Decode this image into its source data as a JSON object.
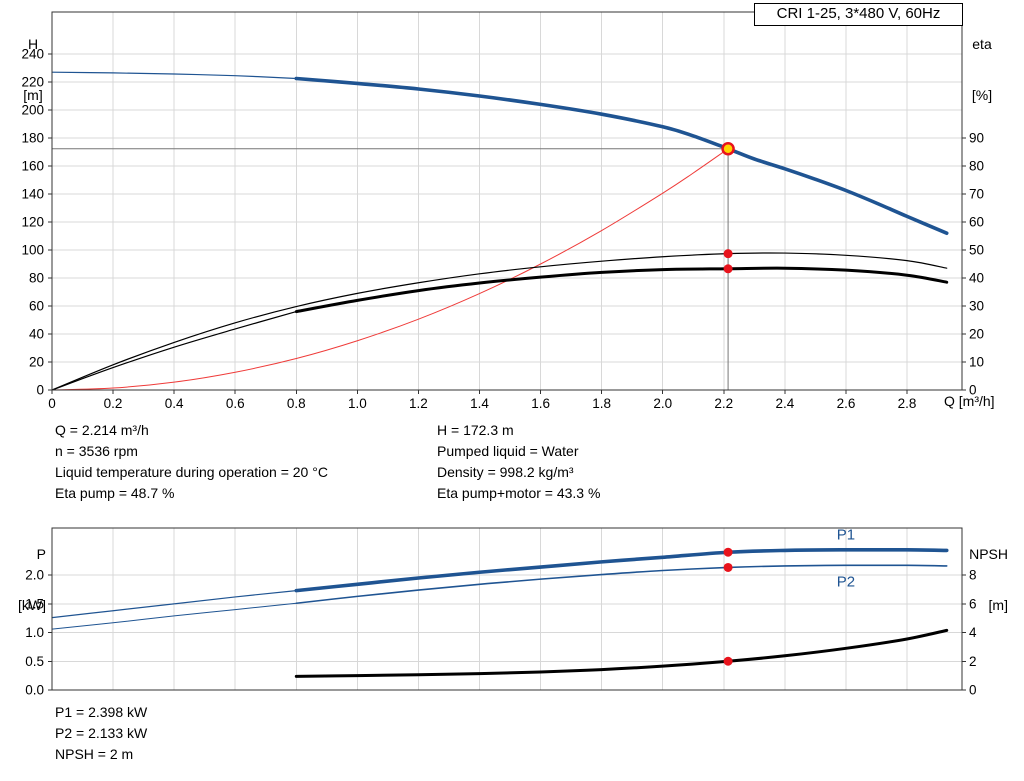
{
  "title_box": {
    "text": "CRI 1-25, 3*480 V, 60Hz"
  },
  "colors": {
    "curve_blue": "#1f5492",
    "curve_black": "#000000",
    "curve_red": "#ef3b39",
    "marker_red": "#e8131c",
    "marker_yellow": "#ffd400",
    "grid": "#d8d8d8",
    "axis": "#333333",
    "crosshair": "#777777"
  },
  "info_blocks": {
    "left": [
      "Q = 2.214 m³/h",
      "n = 3536 rpm",
      "Liquid temperature during operation = 20 °C",
      "Eta pump = 48.7 %"
    ],
    "right": [
      "H = 172.3 m",
      "Pumped liquid = Water",
      "Density = 998.2 kg/m³",
      "Eta pump+motor = 43.3 %"
    ],
    "bottom": [
      "P1 = 2.398 kW",
      "P2 = 2.133 kW",
      "NPSH = 2 m"
    ]
  },
  "chart_data": [
    {
      "type": "line",
      "title": "CRI 1-25, 3*480 V, 60Hz",
      "x_axis": {
        "label": "Q [m³/h]",
        "min": 0,
        "max": 2.98,
        "tick_values": [
          0,
          0.2,
          0.4,
          0.6,
          0.8,
          1.0,
          1.2,
          1.4,
          1.6,
          1.8,
          2.0,
          2.2,
          2.4,
          2.6,
          2.8
        ],
        "tick_labels": [
          "0",
          "0.2",
          "0.4",
          "0.6",
          "0.8",
          "1.0",
          "1.2",
          "1.4",
          "1.6",
          "1.8",
          "2.0",
          "2.2",
          "2.4",
          "2.6",
          "2.8"
        ],
        "show_labels": true
      },
      "y_left": {
        "name": "H",
        "unit": "[m]",
        "min": 0,
        "max": 270,
        "tick_values": [
          0,
          20,
          40,
          60,
          80,
          100,
          120,
          140,
          160,
          180,
          200,
          220,
          240
        ],
        "tick_labels": [
          "0",
          "20",
          "40",
          "60",
          "80",
          "100",
          "120",
          "140",
          "160",
          "180",
          "200",
          "220",
          "240"
        ]
      },
      "y_right": {
        "name": "eta",
        "unit": "[%]",
        "min": 0,
        "max": 135,
        "tick_values": [
          0,
          10,
          20,
          30,
          40,
          50,
          60,
          70,
          80,
          90
        ],
        "tick_labels": [
          "0",
          "10",
          "20",
          "30",
          "40",
          "50",
          "60",
          "70",
          "80",
          "90"
        ]
      },
      "crosshair": {
        "q": 2.214,
        "h": 172.3
      },
      "series": [
        {
          "name": "pump-head-curve-extension",
          "axis": "left",
          "color": "#1f5492",
          "width": 1.2,
          "points": [
            [
              0,
              227
            ],
            [
              0.2,
              226.5
            ],
            [
              0.4,
              225.7
            ],
            [
              0.6,
              224.5
            ],
            [
              0.8,
              222.5
            ]
          ]
        },
        {
          "name": "pump-head-curve",
          "axis": "left",
          "color": "#1f5492",
          "width": 3.6,
          "points": [
            [
              0.8,
              222.5
            ],
            [
              1.0,
              219
            ],
            [
              1.2,
              215
            ],
            [
              1.4,
              210
            ],
            [
              1.6,
              204
            ],
            [
              1.8,
              197
            ],
            [
              2.0,
              188
            ],
            [
              2.1,
              181.5
            ],
            [
              2.214,
              172.3
            ],
            [
              2.3,
              165
            ],
            [
              2.4,
              158
            ],
            [
              2.5,
              150.5
            ],
            [
              2.6,
              142.5
            ],
            [
              2.7,
              133.5
            ],
            [
              2.8,
              124
            ],
            [
              2.93,
              112
            ]
          ]
        },
        {
          "name": "system-curve",
          "axis": "left",
          "color": "#ef3b39",
          "width": 1,
          "points": [
            [
              0,
              0
            ],
            [
              0.2,
              1.4
            ],
            [
              0.4,
              5.6
            ],
            [
              0.6,
              12.7
            ],
            [
              0.8,
              22.5
            ],
            [
              1.0,
              35.2
            ],
            [
              1.2,
              50.6
            ],
            [
              1.4,
              68.9
            ],
            [
              1.6,
              90
            ],
            [
              1.8,
              113.9
            ],
            [
              2.0,
              140.6
            ],
            [
              2.1,
              155
            ],
            [
              2.214,
              172.3
            ]
          ]
        },
        {
          "name": "eta-pump-curve",
          "axis": "right",
          "color": "#000000",
          "width": 1.2,
          "points": [
            [
              0,
              0
            ],
            [
              0.2,
              9
            ],
            [
              0.4,
              17
            ],
            [
              0.6,
              24
            ],
            [
              0.8,
              29.8
            ],
            [
              1.0,
              34.5
            ],
            [
              1.2,
              38.3
            ],
            [
              1.4,
              41.5
            ],
            [
              1.6,
              44
            ],
            [
              1.8,
              46
            ],
            [
              2.0,
              47.6
            ],
            [
              2.214,
              48.7
            ],
            [
              2.4,
              48.9
            ],
            [
              2.6,
              48.1
            ],
            [
              2.8,
              46.2
            ],
            [
              2.93,
              43.5
            ]
          ]
        },
        {
          "name": "eta-pump-motor-curve-extension",
          "axis": "right",
          "color": "#000000",
          "width": 1.2,
          "points": [
            [
              0,
              0
            ],
            [
              0.2,
              8
            ],
            [
              0.4,
              15.3
            ],
            [
              0.6,
              21.8
            ],
            [
              0.8,
              28
            ]
          ]
        },
        {
          "name": "eta-pump-motor-curve",
          "axis": "right",
          "color": "#000000",
          "width": 3,
          "points": [
            [
              0.8,
              28
            ],
            [
              1.0,
              32
            ],
            [
              1.2,
              35.5
            ],
            [
              1.4,
              38.2
            ],
            [
              1.6,
              40.3
            ],
            [
              1.8,
              42
            ],
            [
              2.0,
              43
            ],
            [
              2.214,
              43.3
            ],
            [
              2.4,
              43.5
            ],
            [
              2.6,
              42.8
            ],
            [
              2.8,
              41
            ],
            [
              2.93,
              38.5
            ]
          ]
        }
      ],
      "markers": [
        {
          "name": "duty-point",
          "q": 2.214,
          "value": 172.3,
          "axis": "left",
          "r": 5.5,
          "fill": "#ffd400",
          "stroke": "#e8131c",
          "stroke_width": 2.5
        },
        {
          "name": "eta-pump-point",
          "q": 2.214,
          "value": 48.7,
          "axis": "right",
          "r": 4.5,
          "fill": "#e8131c"
        },
        {
          "name": "eta-pump-motor-point",
          "q": 2.214,
          "value": 43.3,
          "axis": "right",
          "r": 4.5,
          "fill": "#e8131c"
        }
      ],
      "annotations": []
    },
    {
      "type": "line",
      "x_axis": {
        "label": "",
        "min": 0,
        "max": 2.98,
        "tick_values": [
          0,
          0.2,
          0.4,
          0.6,
          0.8,
          1.0,
          1.2,
          1.4,
          1.6,
          1.8,
          2.0,
          2.2,
          2.4,
          2.6,
          2.8
        ],
        "tick_labels": [
          "0",
          "0.2",
          "0.4",
          "0.6",
          "0.8",
          "1.0",
          "1.2",
          "1.4",
          "1.6",
          "1.8",
          "2.0",
          "2.2",
          "2.4",
          "2.6",
          "2.8"
        ],
        "show_labels": false
      },
      "y_left": {
        "name": "P",
        "unit": "[kW]",
        "min": 0,
        "max": 2.82,
        "tick_values": [
          0,
          0.5,
          1.0,
          1.5,
          2.0
        ],
        "tick_labels": [
          "0.0",
          "0.5",
          "1.0",
          "1.5",
          "2.0"
        ]
      },
      "y_right": {
        "name": "NPSH",
        "unit": "[m]",
        "min": 0,
        "max": 11.27,
        "tick_values": [
          0,
          2,
          4,
          6,
          8
        ],
        "tick_labels": [
          "0",
          "2",
          "4",
          "6",
          "8"
        ]
      },
      "series": [
        {
          "name": "p1-curve-extension",
          "axis": "left",
          "color": "#1f5492",
          "width": 1.2,
          "points": [
            [
              0,
              1.26
            ],
            [
              0.2,
              1.38
            ],
            [
              0.4,
              1.5
            ],
            [
              0.6,
              1.62
            ],
            [
              0.8,
              1.73
            ]
          ]
        },
        {
          "name": "p1-curve",
          "axis": "left",
          "color": "#1f5492",
          "width": 3.6,
          "points": [
            [
              0.8,
              1.73
            ],
            [
              1.0,
              1.84
            ],
            [
              1.2,
              1.95
            ],
            [
              1.4,
              2.05
            ],
            [
              1.6,
              2.14
            ],
            [
              1.8,
              2.23
            ],
            [
              2.0,
              2.31
            ],
            [
              2.214,
              2.398
            ],
            [
              2.4,
              2.43
            ],
            [
              2.6,
              2.44
            ],
            [
              2.8,
              2.44
            ],
            [
              2.93,
              2.43
            ]
          ]
        },
        {
          "name": "p2-curve-extension",
          "axis": "left",
          "color": "#1f5492",
          "width": 1,
          "points": [
            [
              0,
              1.06
            ],
            [
              0.2,
              1.17
            ],
            [
              0.4,
              1.29
            ],
            [
              0.6,
              1.4
            ],
            [
              0.8,
              1.51
            ]
          ]
        },
        {
          "name": "p2-curve",
          "axis": "left",
          "color": "#1f5492",
          "width": 1.6,
          "points": [
            [
              0.8,
              1.51
            ],
            [
              1.0,
              1.63
            ],
            [
              1.2,
              1.74
            ],
            [
              1.4,
              1.84
            ],
            [
              1.6,
              1.93
            ],
            [
              1.8,
              2.01
            ],
            [
              2.0,
              2.08
            ],
            [
              2.214,
              2.133
            ],
            [
              2.4,
              2.16
            ],
            [
              2.6,
              2.17
            ],
            [
              2.8,
              2.17
            ],
            [
              2.93,
              2.16
            ]
          ]
        },
        {
          "name": "npsh-curve",
          "axis": "right",
          "color": "#000000",
          "width": 3,
          "points": [
            [
              0.8,
              0.95
            ],
            [
              1.0,
              1.0
            ],
            [
              1.2,
              1.06
            ],
            [
              1.4,
              1.14
            ],
            [
              1.6,
              1.25
            ],
            [
              1.8,
              1.42
            ],
            [
              2.0,
              1.66
            ],
            [
              2.214,
              2.0
            ],
            [
              2.4,
              2.38
            ],
            [
              2.6,
              2.9
            ],
            [
              2.8,
              3.55
            ],
            [
              2.93,
              4.15
            ]
          ]
        }
      ],
      "markers": [
        {
          "name": "p1-point",
          "q": 2.214,
          "value": 2.398,
          "axis": "left",
          "r": 4.5,
          "fill": "#e8131c"
        },
        {
          "name": "p2-point",
          "q": 2.214,
          "value": 2.133,
          "axis": "left",
          "r": 4.5,
          "fill": "#e8131c"
        },
        {
          "name": "npsh-point",
          "q": 2.214,
          "value": 2.0,
          "axis": "right",
          "r": 4.5,
          "fill": "#e8131c"
        }
      ],
      "annotations": [
        {
          "text": "P1",
          "q": 2.6,
          "value": 2.62,
          "axis": "left",
          "color": "#1f5492"
        },
        {
          "text": "P2",
          "q": 2.6,
          "value": 1.8,
          "axis": "left",
          "color": "#1f5492"
        }
      ]
    }
  ]
}
